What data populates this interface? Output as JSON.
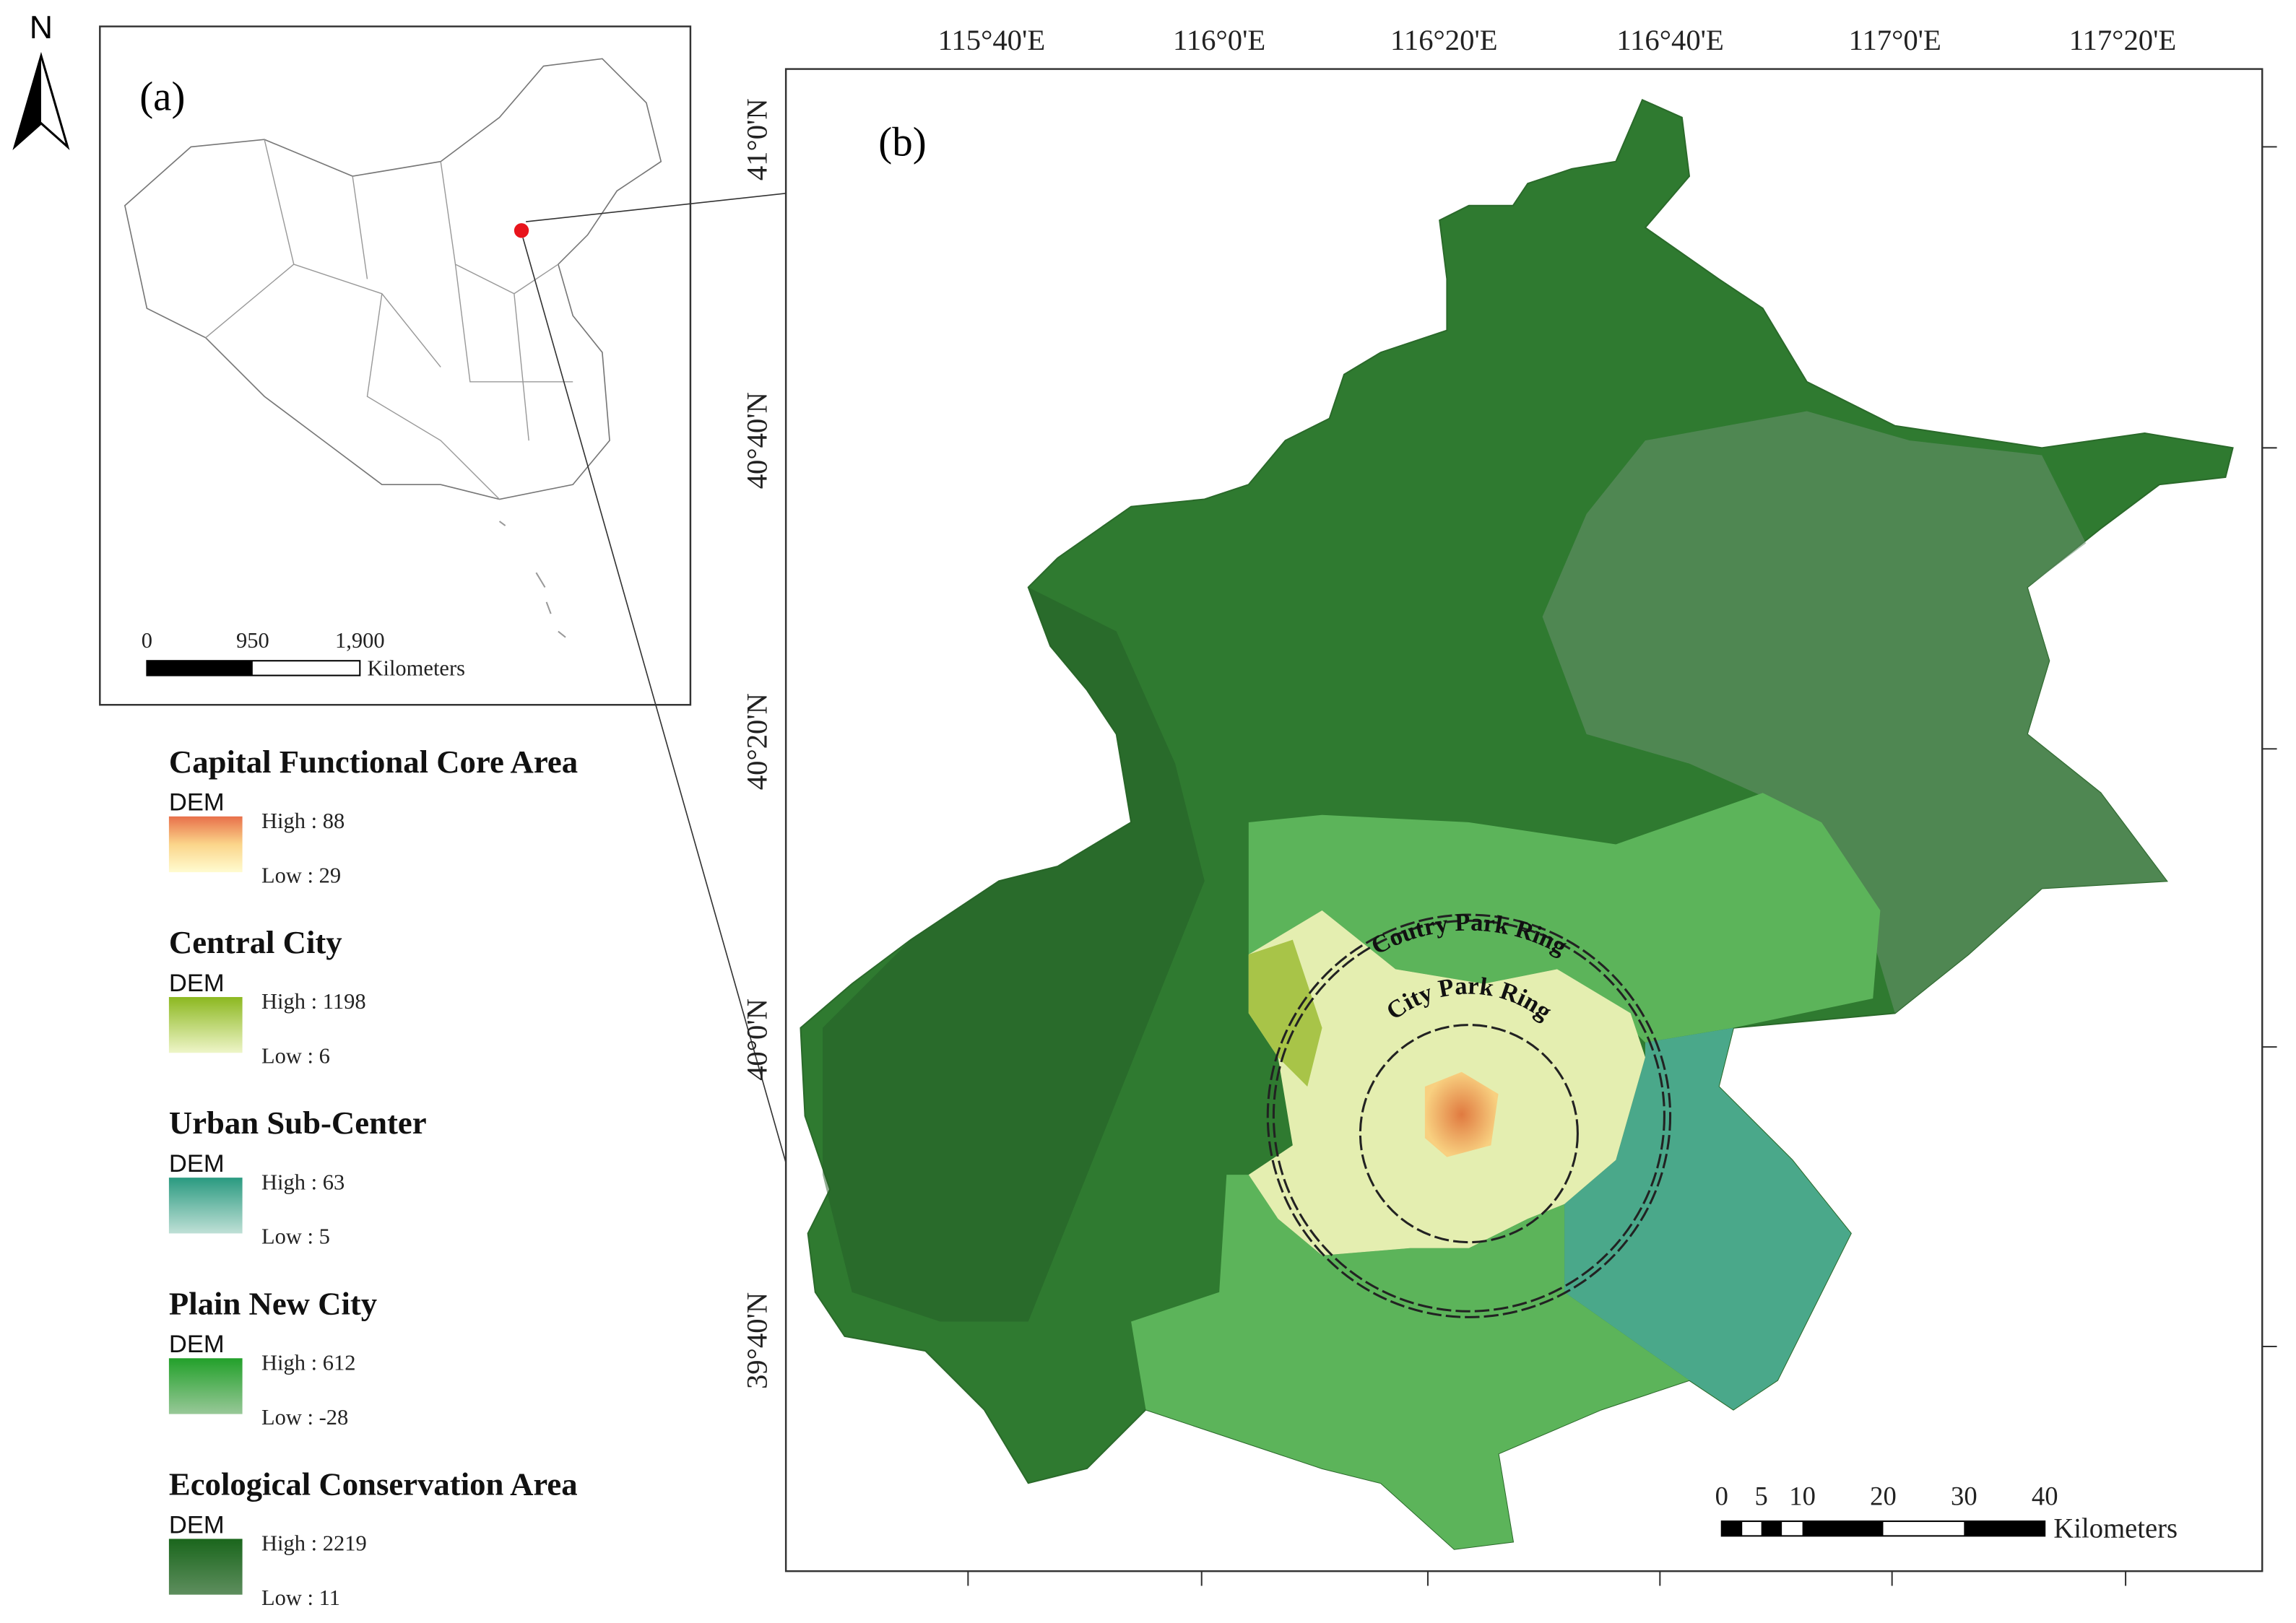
{
  "north_arrow": "N",
  "inset": {
    "label": "(a)",
    "scale_bar": {
      "ticks": [
        "0",
        "950",
        "1,900"
      ],
      "unit": "Kilometers"
    }
  },
  "main_map": {
    "label": "(b)",
    "longitude_labels": [
      "115°40'E",
      "116°0'E",
      "116°20'E",
      "116°40'E",
      "117°0'E",
      "117°20'E"
    ],
    "latitude_labels": [
      "41°0'N",
      "40°40'N",
      "40°20'N",
      "40°0'N",
      "39°40'N"
    ],
    "rings": [
      "Coutry Park Ring",
      "City Park Ring"
    ],
    "scale_bar": {
      "ticks": [
        "0",
        "5",
        "10",
        "20",
        "30",
        "40"
      ],
      "unit": "Kilometers"
    }
  },
  "legend": [
    {
      "title": "Capital Functional Core Area",
      "subtitle": "DEM",
      "high": "High : 88",
      "low": "Low : 29"
    },
    {
      "title": "Central City",
      "subtitle": "DEM",
      "high": "High : 1198",
      "low": "Low : 6"
    },
    {
      "title": "Urban Sub-Center",
      "subtitle": "DEM",
      "high": "High : 63",
      "low": "Low : 5"
    },
    {
      "title": "Plain New City",
      "subtitle": "DEM",
      "high": "High : 612",
      "low": "Low : -28"
    },
    {
      "title": "Ecological Conservation Area",
      "subtitle": "DEM",
      "high": "High : 2219",
      "low": "Low : 11"
    }
  ]
}
